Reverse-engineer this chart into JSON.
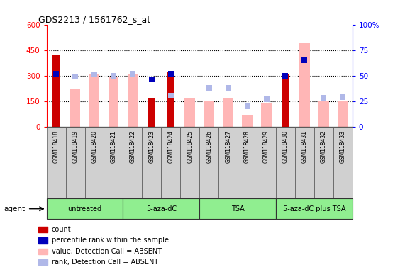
{
  "title": "GDS2213 / 1561762_s_at",
  "samples": [
    "GSM118418",
    "GSM118419",
    "GSM118420",
    "GSM118421",
    "GSM118422",
    "GSM118423",
    "GSM118424",
    "GSM118425",
    "GSM118426",
    "GSM118427",
    "GSM118428",
    "GSM118429",
    "GSM118430",
    "GSM118431",
    "GSM118432",
    "GSM118433"
  ],
  "count_values": [
    420,
    null,
    null,
    null,
    null,
    168,
    320,
    null,
    null,
    null,
    null,
    null,
    305,
    null,
    null,
    null
  ],
  "rank_present": [
    52,
    null,
    null,
    null,
    null,
    46,
    52,
    null,
    null,
    null,
    null,
    null,
    50,
    65,
    null,
    null
  ],
  "value_absent": [
    null,
    225,
    305,
    295,
    310,
    null,
    null,
    163,
    153,
    163,
    68,
    138,
    null,
    490,
    150,
    153
  ],
  "rank_absent": [
    null,
    49,
    51,
    50,
    52,
    null,
    30,
    null,
    38,
    38,
    20,
    27,
    null,
    65,
    28,
    29
  ],
  "left_ylim": [
    0,
    600
  ],
  "left_yticks": [
    0,
    150,
    300,
    450,
    600
  ],
  "right_ylim": [
    0,
    100
  ],
  "right_yticks": [
    0,
    25,
    50,
    75,
    100
  ],
  "count_color": "#cc0000",
  "rank_present_color": "#0000bb",
  "value_absent_color": "#ffb6b6",
  "rank_absent_color": "#b0b8e8",
  "group_labels": [
    "untreated",
    "5-aza-dC",
    "TSA",
    "5-aza-dC plus TSA"
  ],
  "group_ranges": [
    [
      0,
      3
    ],
    [
      4,
      7
    ],
    [
      8,
      11
    ],
    [
      12,
      15
    ]
  ],
  "group_color": "#90ee90",
  "legend_labels": [
    "count",
    "percentile rank within the sample",
    "value, Detection Call = ABSENT",
    "rank, Detection Call = ABSENT"
  ],
  "legend_colors": [
    "#cc0000",
    "#0000bb",
    "#ffb6b6",
    "#b0b8e8"
  ]
}
